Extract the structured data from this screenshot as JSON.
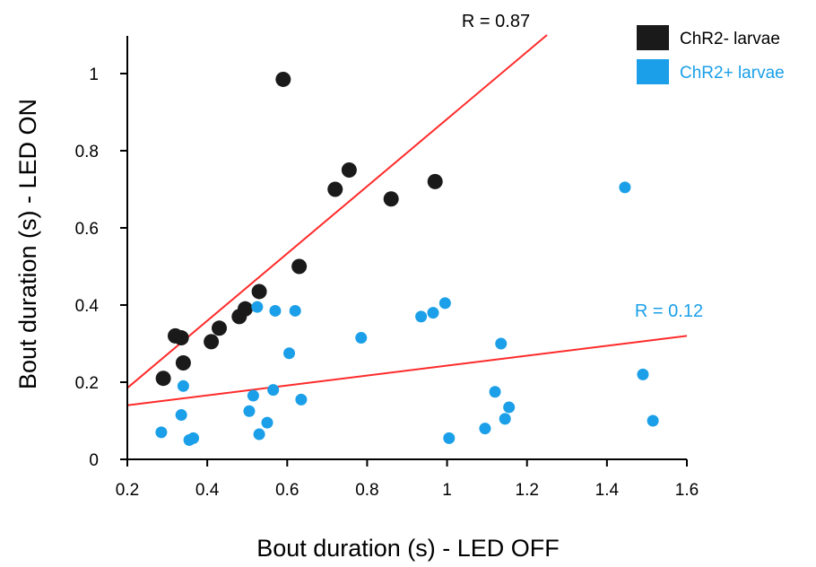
{
  "chart_data": {
    "type": "scatter",
    "xlabel": "Bout duration (s) - LED OFF",
    "ylabel": "Bout duration (s) - LED ON",
    "xlim": [
      0.2,
      1.6
    ],
    "ylim": [
      0,
      1.1
    ],
    "x_ticks": [
      0.2,
      0.4,
      0.6,
      0.8,
      1,
      1.2,
      1.4,
      1.6
    ],
    "x_tick_labels": [
      "0.2",
      "0.4",
      "0.6",
      "0.8",
      "1",
      "1.2",
      "1.4",
      "1.6"
    ],
    "y_ticks": [
      0,
      0.2,
      0.4,
      0.6,
      0.8,
      1
    ],
    "y_tick_labels": [
      "0",
      "0.2",
      "0.4",
      "0.6",
      "0.8",
      "1"
    ],
    "grid": false,
    "legend_position": "top-right",
    "series": [
      {
        "name": "ChR2- larvae",
        "color": "#1a1a1a",
        "points": [
          {
            "x": 0.29,
            "y": 0.21
          },
          {
            "x": 0.32,
            "y": 0.32
          },
          {
            "x": 0.335,
            "y": 0.315
          },
          {
            "x": 0.34,
            "y": 0.25
          },
          {
            "x": 0.41,
            "y": 0.305
          },
          {
            "x": 0.43,
            "y": 0.34
          },
          {
            "x": 0.48,
            "y": 0.37
          },
          {
            "x": 0.495,
            "y": 0.39
          },
          {
            "x": 0.53,
            "y": 0.435
          },
          {
            "x": 0.59,
            "y": 0.985
          },
          {
            "x": 0.63,
            "y": 0.5
          },
          {
            "x": 0.72,
            "y": 0.7
          },
          {
            "x": 0.755,
            "y": 0.75
          },
          {
            "x": 0.86,
            "y": 0.675
          },
          {
            "x": 0.97,
            "y": 0.72
          }
        ],
        "fit": {
          "x": [
            0.2,
            1.25
          ],
          "y": [
            0.185,
            1.1
          ]
        },
        "annotation": "R = 0.87"
      },
      {
        "name": "ChR2+ larvae",
        "color": "#1a9fe8",
        "points": [
          {
            "x": 0.285,
            "y": 0.07
          },
          {
            "x": 0.335,
            "y": 0.115
          },
          {
            "x": 0.34,
            "y": 0.19
          },
          {
            "x": 0.355,
            "y": 0.05
          },
          {
            "x": 0.365,
            "y": 0.055
          },
          {
            "x": 0.505,
            "y": 0.125
          },
          {
            "x": 0.515,
            "y": 0.165
          },
          {
            "x": 0.525,
            "y": 0.395
          },
          {
            "x": 0.53,
            "y": 0.065
          },
          {
            "x": 0.55,
            "y": 0.095
          },
          {
            "x": 0.565,
            "y": 0.18
          },
          {
            "x": 0.57,
            "y": 0.385
          },
          {
            "x": 0.605,
            "y": 0.275
          },
          {
            "x": 0.62,
            "y": 0.385
          },
          {
            "x": 0.635,
            "y": 0.155
          },
          {
            "x": 0.785,
            "y": 0.315
          },
          {
            "x": 0.935,
            "y": 0.37
          },
          {
            "x": 0.965,
            "y": 0.38
          },
          {
            "x": 0.995,
            "y": 0.405
          },
          {
            "x": 1.005,
            "y": 0.055
          },
          {
            "x": 1.095,
            "y": 0.08
          },
          {
            "x": 1.12,
            "y": 0.175
          },
          {
            "x": 1.135,
            "y": 0.3
          },
          {
            "x": 1.145,
            "y": 0.105
          },
          {
            "x": 1.155,
            "y": 0.135
          },
          {
            "x": 1.445,
            "y": 0.705
          },
          {
            "x": 1.49,
            "y": 0.22
          },
          {
            "x": 1.515,
            "y": 0.1
          }
        ],
        "fit": {
          "x": [
            0.2,
            1.6
          ],
          "y": [
            0.14,
            0.32
          ]
        },
        "annotation": "R = 0.12"
      }
    ],
    "fit_line_color": "#ff2a2a"
  }
}
